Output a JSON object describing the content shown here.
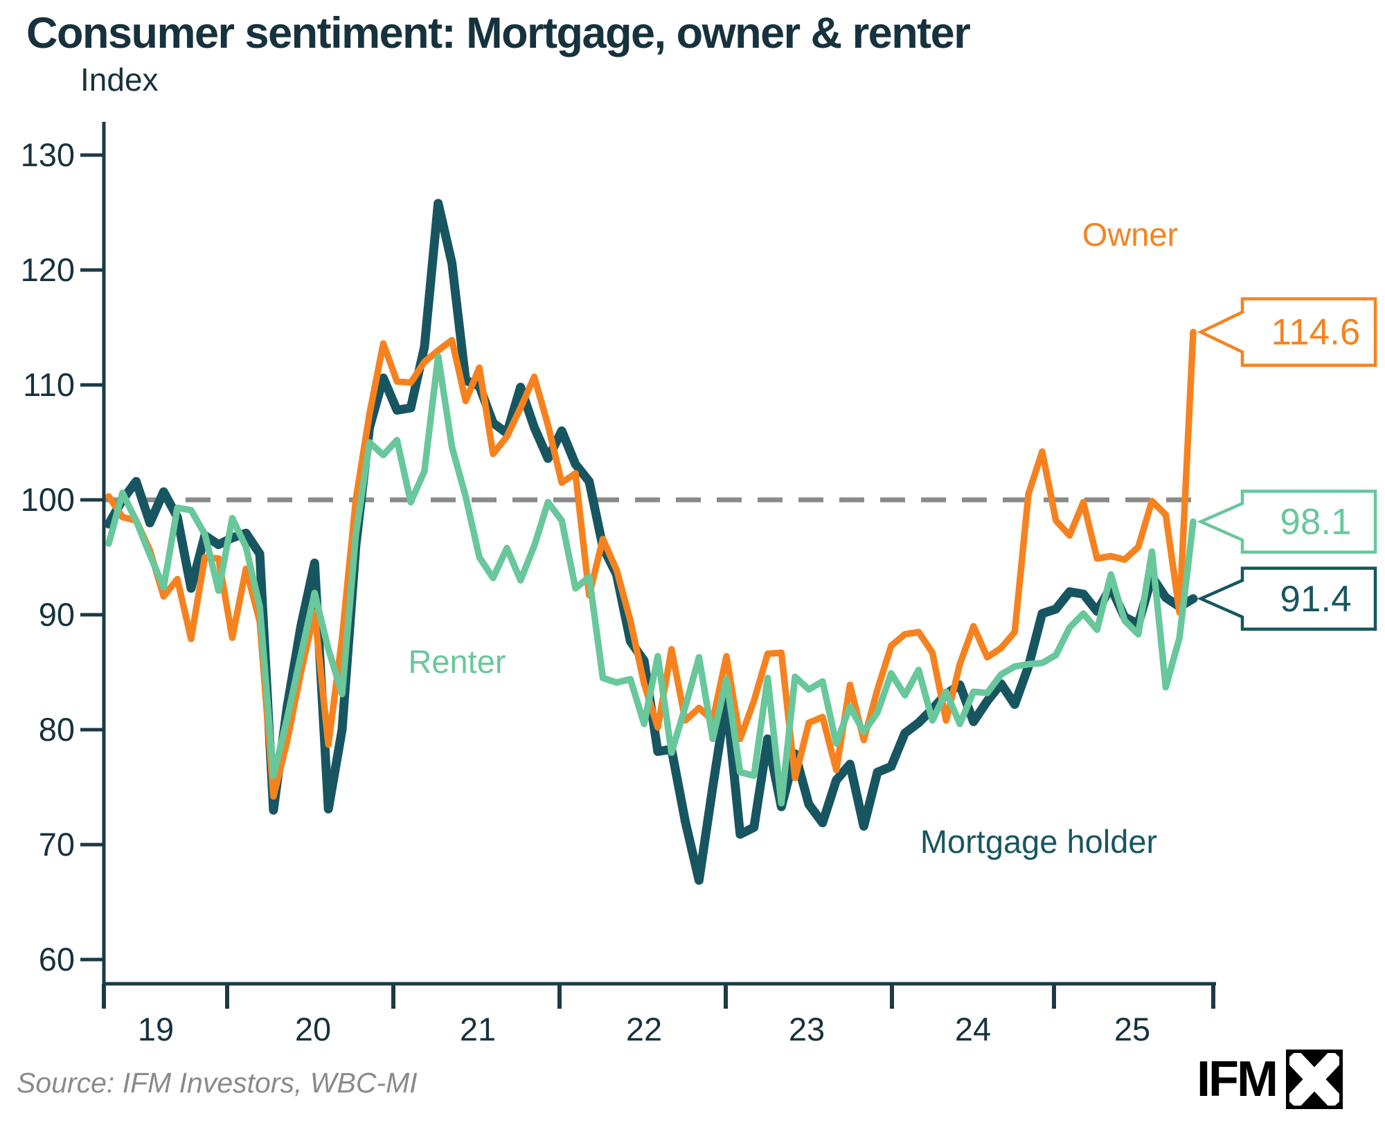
{
  "title": "Consumer sentiment: Mortgage, owner & renter",
  "source": "Source: IFM Investors, WBC-MI",
  "logo": {
    "text": "IFM",
    "mark": "ifm-pinwheel-mark"
  },
  "chart_data": {
    "type": "line",
    "title": "Consumer sentiment: Mortgage, owner & renter",
    "xlabel": "",
    "ylabel": "Index",
    "frequency": "monthly",
    "x_span": "2019 to 2025",
    "grid": "off",
    "legend_position": "inline-labels",
    "y_axis": {
      "ticks": [
        130,
        120,
        110,
        100,
        90,
        80,
        70,
        60
      ],
      "ylim": [
        53,
        133
      ]
    },
    "x_axis": {
      "tick_labels": [
        "19",
        "20",
        "21",
        "22",
        "23",
        "24",
        "25"
      ]
    },
    "baseline": {
      "value": 100,
      "style": "dashed",
      "color": "#8A8A8A"
    },
    "series": [
      {
        "name": "Owner",
        "color": "#F6821F",
        "final_value": "114.6",
        "values": [
          100.3,
          98.5,
          98.2,
          95.6,
          91.6,
          93.1,
          87.9,
          95.0,
          94.9,
          88.0,
          94.0,
          89.4,
          74.2,
          79.0,
          85.0,
          90.2,
          78.7,
          88.0,
          100.0,
          107.5,
          113.6,
          110.3,
          110.2,
          112.0,
          113.0,
          113.9,
          108.6,
          111.5,
          104.0,
          105.5,
          108.0,
          110.7,
          106.5,
          101.5,
          102.3,
          91.7,
          96.6,
          93.9,
          89.5,
          84.0,
          80.2,
          87.0,
          80.8,
          81.9,
          80.8,
          86.4,
          79.2,
          82.5,
          86.6,
          86.7,
          75.8,
          80.6,
          81.1,
          76.5,
          83.9,
          79.1,
          83.5,
          87.3,
          88.3,
          88.5,
          86.7,
          80.8,
          85.7,
          89.0,
          86.3,
          87.1,
          88.5,
          100.5,
          104.2,
          98.2,
          96.9,
          99.8,
          94.9,
          95.1,
          94.8,
          95.9,
          99.9,
          98.7,
          90.2,
          114.6
        ]
      },
      {
        "name": "Renter",
        "color": "#68C79B",
        "final_value": "98.1",
        "values": [
          96.2,
          100.6,
          98.2,
          95.2,
          92.4,
          99.3,
          99.1,
          97.0,
          92.1,
          98.4,
          95.9,
          90.7,
          76.0,
          81.0,
          86.5,
          91.9,
          87.0,
          83.1,
          97.0,
          105.0,
          103.9,
          105.2,
          99.8,
          102.5,
          112.5,
          104.6,
          100.3,
          95.0,
          93.2,
          95.8,
          93.0,
          96.0,
          99.8,
          98.2,
          92.3,
          93.3,
          84.5,
          84.1,
          84.4,
          80.5,
          86.4,
          78.0,
          82.0,
          86.3,
          79.2,
          84.4,
          76.3,
          76.0,
          84.5,
          73.6,
          84.6,
          83.5,
          84.2,
          78.8,
          82.0,
          79.8,
          81.5,
          84.9,
          83.0,
          85.2,
          80.8,
          83.3,
          80.5,
          83.3,
          83.2,
          84.8,
          85.5,
          85.7,
          85.8,
          86.5,
          88.9,
          90.1,
          88.7,
          93.5,
          89.5,
          88.3,
          95.5,
          83.7,
          88.0,
          98.1
        ]
      },
      {
        "name": "Mortgage holder",
        "color": "#175661",
        "final_value": "91.4",
        "values": [
          97.9,
          100.0,
          101.6,
          98.0,
          100.7,
          98.5,
          92.3,
          96.9,
          96.1,
          96.7,
          97.1,
          95.3,
          73.0,
          82.0,
          89.0,
          94.5,
          73.1,
          80.0,
          96.0,
          106.3,
          110.6,
          107.8,
          108.0,
          113.3,
          125.8,
          120.6,
          110.4,
          109.9,
          106.7,
          105.8,
          109.8,
          106.3,
          103.6,
          106.0,
          103.1,
          101.6,
          95.9,
          93.5,
          87.7,
          86.0,
          78.1,
          78.3,
          72.0,
          66.9,
          75.0,
          82.7,
          70.9,
          71.5,
          79.2,
          73.3,
          77.9,
          73.5,
          71.9,
          75.6,
          77.0,
          71.6,
          76.3,
          76.8,
          79.7,
          80.6,
          81.8,
          83.1,
          83.9,
          80.7,
          82.5,
          84.0,
          82.2,
          85.5,
          90.1,
          90.5,
          92.0,
          91.8,
          90.3,
          92.4,
          89.8,
          89.2,
          93.3,
          91.5,
          90.7,
          91.4
        ]
      }
    ],
    "callouts": [
      {
        "series": "Owner",
        "value": "114.6",
        "color": "#F6821F"
      },
      {
        "series": "Renter",
        "value": "98.1",
        "color": "#68C79B"
      },
      {
        "series": "Mortgage holder",
        "value": "91.4",
        "color": "#175661"
      }
    ],
    "annotations": [
      {
        "text": "Owner",
        "color": "#F6821F"
      },
      {
        "text": "Renter",
        "color": "#68C79B"
      },
      {
        "text": "Mortgage holder",
        "color": "#175661"
      }
    ]
  }
}
